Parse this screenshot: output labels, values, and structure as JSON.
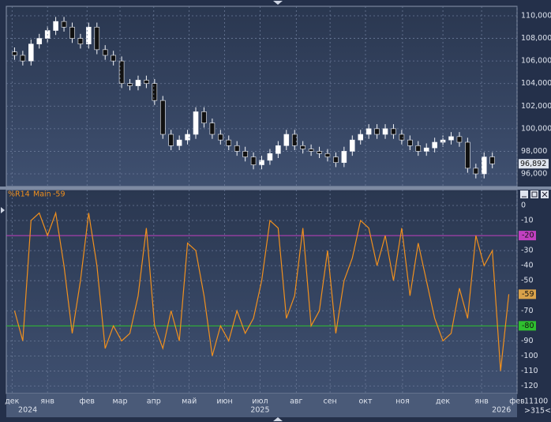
{
  "chart_data": [
    {
      "type": "candlestick",
      "x": [
        0,
        1,
        2,
        3,
        4,
        5,
        6,
        7,
        8,
        9,
        10,
        11,
        12,
        13,
        14,
        15,
        16,
        17,
        18,
        19,
        20,
        21,
        22,
        23,
        24,
        25,
        26,
        27,
        28,
        29,
        30,
        31,
        32,
        33,
        34,
        35,
        36,
        37,
        38,
        39,
        40,
        41,
        42,
        43,
        44,
        45,
        46,
        47,
        48,
        49,
        50,
        51,
        52,
        53,
        54,
        55,
        56,
        57,
        58
      ],
      "open": [
        106800,
        106500,
        106000,
        107500,
        108000,
        108700,
        109500,
        109000,
        108000,
        107500,
        109000,
        107000,
        106500,
        106000,
        104000,
        103800,
        104300,
        104000,
        102500,
        99500,
        98500,
        99000,
        99500,
        101500,
        100500,
        99500,
        99000,
        98500,
        98000,
        97500,
        96800,
        97200,
        97800,
        98500,
        99500,
        98500,
        98200,
        98000,
        97800,
        97500,
        97000,
        98000,
        99000,
        99500,
        100000,
        99500,
        100000,
        99500,
        99000,
        98500,
        98000,
        98300,
        98800,
        99000,
        99300,
        98800,
        96500,
        96000,
        97500
      ],
      "high": [
        107200,
        106900,
        107900,
        108400,
        109100,
        109900,
        109900,
        109400,
        108400,
        109400,
        109400,
        107400,
        106900,
        106400,
        104400,
        104700,
        104700,
        104400,
        102900,
        99900,
        99400,
        99900,
        101900,
        101900,
        100900,
        99900,
        99400,
        98900,
        98400,
        97900,
        97600,
        98200,
        98900,
        99900,
        99900,
        98900,
        98600,
        98400,
        98200,
        97900,
        98400,
        99400,
        99900,
        100400,
        100400,
        100400,
        100400,
        99900,
        99400,
        98900,
        98700,
        99200,
        99400,
        99700,
        99700,
        99200,
        96900,
        97900,
        97900
      ],
      "low": [
        106100,
        105600,
        105600,
        107100,
        107600,
        108300,
        108600,
        107600,
        107100,
        107100,
        106600,
        106100,
        105600,
        103600,
        103400,
        103400,
        103600,
        102100,
        99100,
        98100,
        98100,
        98600,
        99100,
        100100,
        99100,
        98600,
        98100,
        97600,
        97100,
        96400,
        96400,
        96800,
        97400,
        98100,
        98100,
        97800,
        97600,
        97400,
        97100,
        96600,
        96600,
        97600,
        98600,
        99100,
        99100,
        99100,
        99100,
        98600,
        98100,
        97600,
        97600,
        97900,
        98400,
        98600,
        98400,
        96100,
        95600,
        95600,
        96492
      ],
      "close": [
        106500,
        106000,
        107500,
        108000,
        108700,
        109500,
        109000,
        108000,
        107500,
        109000,
        107000,
        106500,
        106000,
        104000,
        103800,
        104300,
        104000,
        102500,
        99500,
        98500,
        99000,
        99500,
        101500,
        100500,
        99500,
        99000,
        98500,
        98000,
        97500,
        96800,
        97200,
        97800,
        98500,
        99500,
        98500,
        98200,
        98000,
        97800,
        97500,
        97000,
        98000,
        99000,
        99500,
        100000,
        99500,
        100000,
        99500,
        99000,
        98500,
        98000,
        98300,
        98800,
        99000,
        99300,
        98800,
        96500,
        96000,
        97500,
        96892
      ],
      "last_price_label": "96,892",
      "xlim": [
        -1,
        61
      ],
      "ylim": [
        94880,
        110840
      ],
      "yticks": [
        {
          "value": 96000,
          "label": "96,000"
        },
        {
          "value": 98000,
          "label": "98,000"
        },
        {
          "value": 100000,
          "label": "100,000"
        },
        {
          "value": 102000,
          "label": "102,000"
        },
        {
          "value": 104000,
          "label": "104,000"
        },
        {
          "value": 106000,
          "label": "106,000"
        },
        {
          "value": 108000,
          "label": "108,000"
        },
        {
          "value": 110000,
          "label": "110,000"
        }
      ],
      "grid": true
    },
    {
      "type": "line",
      "title": "%R14",
      "x": [
        0,
        1,
        2,
        3,
        4,
        5,
        6,
        7,
        8,
        9,
        10,
        11,
        12,
        13,
        14,
        15,
        16,
        17,
        18,
        19,
        20,
        21,
        22,
        23,
        24,
        25,
        26,
        27,
        28,
        29,
        30,
        31,
        32,
        33,
        34,
        35,
        36,
        37,
        38,
        39,
        40,
        41,
        42,
        43,
        44,
        45,
        46,
        47,
        48,
        49,
        50,
        51,
        52,
        53,
        54,
        55,
        56,
        57,
        58,
        59,
        60
      ],
      "series": [
        {
          "name": "Main",
          "color": "#f0901e",
          "values": [
            -70,
            -90,
            -10,
            -5,
            -20,
            -5,
            -40,
            -85,
            -50,
            -5,
            -40,
            -95,
            -80,
            -90,
            -85,
            -60,
            -15,
            -80,
            -95,
            -70,
            -90,
            -25,
            -30,
            -60,
            -100,
            -80,
            -90,
            -70,
            -85,
            -75,
            -50,
            -10,
            -15,
            -75,
            -60,
            -15,
            -80,
            -70,
            -30,
            -85,
            -50,
            -35,
            -10,
            -15,
            -40,
            -20,
            -50,
            -15,
            -60,
            -25,
            -50,
            -75,
            -90,
            -85,
            -55,
            -75,
            -20,
            -40,
            -30,
            -110,
            -59
          ]
        }
      ],
      "levels": [
        {
          "value": -20,
          "color": "#c040c0"
        },
        {
          "value": -80,
          "color": "#2fbf2f"
        }
      ],
      "xlim": [
        -1,
        61
      ],
      "ylim": [
        -125,
        10.5
      ],
      "yticks": [
        0,
        -10,
        -30,
        -40,
        -50,
        -70,
        -90,
        -100,
        -110,
        -120
      ],
      "xticks": [
        {
          "value": -0.3,
          "label": "дек"
        },
        {
          "value": 4.0,
          "label": "янв"
        },
        {
          "value": 8.8,
          "label": "фев"
        },
        {
          "value": 12.8,
          "label": "мар"
        },
        {
          "value": 16.9,
          "label": "апр"
        },
        {
          "value": 21.2,
          "label": "май"
        },
        {
          "value": 25.5,
          "label": "июн"
        },
        {
          "value": 29.8,
          "label": "июл"
        },
        {
          "value": 34.2,
          "label": "авг"
        },
        {
          "value": 38.3,
          "label": "сен"
        },
        {
          "value": 42.6,
          "label": "окт"
        },
        {
          "value": 47.1,
          "label": "ноя"
        },
        {
          "value": 52.0,
          "label": "дек"
        },
        {
          "value": 56.7,
          "label": "янв"
        },
        {
          "value": 61.0,
          "label": "фев"
        }
      ],
      "year_ticks": [
        {
          "value": 1.6,
          "label": "2024"
        },
        {
          "value": 29.8,
          "label": "2025"
        },
        {
          "value": 59.1,
          "label": "2026"
        }
      ],
      "grid": true
    }
  ],
  "ui": {
    "scale_value": "11100",
    "scale_hint": ">315<"
  }
}
